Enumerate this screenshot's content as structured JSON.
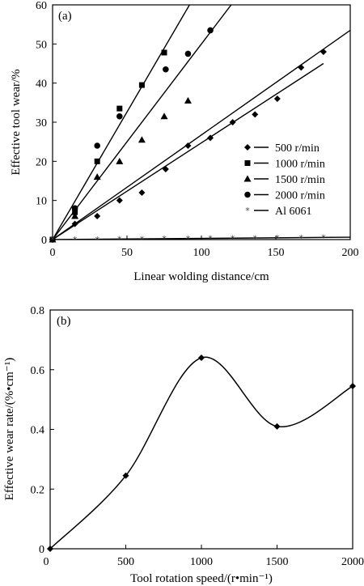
{
  "chart_data": [
    {
      "type": "scatter",
      "panel_label": "(a)",
      "xlabel": "Linear wolding distance/cm",
      "ylabel": "Effective tool wear/%",
      "xlim": [
        0,
        200
      ],
      "ylim": [
        0,
        60
      ],
      "xticks": [
        0,
        50,
        100,
        150,
        200
      ],
      "yticks": [
        0,
        10,
        20,
        30,
        40,
        50,
        60
      ],
      "legend_position": "right",
      "series": [
        {
          "name": "500 r/min",
          "marker": "diamond",
          "points": [
            [
              0,
              0
            ],
            [
              15,
              4
            ],
            [
              30,
              6
            ],
            [
              45,
              10
            ],
            [
              60,
              12
            ],
            [
              76,
              18
            ],
            [
              91,
              24
            ],
            [
              106,
              26
            ],
            [
              121,
              30
            ],
            [
              136,
              32
            ],
            [
              151,
              36
            ],
            [
              167,
              44
            ],
            [
              182,
              48
            ]
          ],
          "fit": [
            [
              0,
              0
            ],
            [
              182,
              45
            ]
          ]
        },
        {
          "name": "1000 r/min",
          "marker": "square",
          "points": [
            [
              0,
              0
            ],
            [
              15,
              7
            ],
            [
              30,
              20
            ],
            [
              45,
              33.5
            ],
            [
              60,
              39.5
            ],
            [
              75,
              47.8
            ]
          ],
          "fit": [
            [
              0,
              0
            ],
            [
              92,
              60
            ]
          ]
        },
        {
          "name": "1500 r/min",
          "marker": "triangle",
          "points": [
            [
              0,
              0
            ],
            [
              15,
              6
            ],
            [
              30,
              16
            ],
            [
              45,
              20
            ],
            [
              60,
              25.5
            ],
            [
              75,
              31.5
            ],
            [
              91,
              35.5
            ]
          ],
          "fit": [
            [
              0,
              0
            ],
            [
              120,
              60
            ]
          ]
        },
        {
          "name": "2000 r/min",
          "marker": "circle",
          "points": [
            [
              0,
              0
            ],
            [
              15,
              8
            ],
            [
              30,
              24
            ],
            [
              45,
              31.5
            ],
            [
              76,
              43.5
            ],
            [
              91,
              47.5
            ],
            [
              106,
              53.5
            ]
          ],
          "fit": [
            [
              0,
              0
            ],
            [
              200,
              53.5
            ]
          ]
        },
        {
          "name": "Al 6061",
          "marker": "star",
          "points": [
            [
              0,
              0
            ],
            [
              15,
              0
            ],
            [
              30,
              0
            ],
            [
              45,
              0.1
            ],
            [
              60,
              0.1
            ],
            [
              75,
              0.2
            ],
            [
              91,
              0.2
            ],
            [
              106,
              0.3
            ],
            [
              121,
              0.3
            ],
            [
              136,
              0.3
            ],
            [
              151,
              0.4
            ],
            [
              167,
              0.4
            ],
            [
              182,
              0.5
            ]
          ],
          "fit": [
            [
              0,
              0
            ],
            [
              200,
              0.6
            ]
          ]
        }
      ]
    },
    {
      "type": "line",
      "panel_label": "(b)",
      "xlabel": "Tool rotation speed/(r•min⁻¹)",
      "ylabel": "Effective wear rate/(%•cm⁻¹)",
      "xlim": [
        0,
        2000
      ],
      "ylim": [
        0,
        0.8
      ],
      "xticks": [
        0,
        500,
        1000,
        1500,
        2000
      ],
      "yticks": [
        0,
        0.2,
        0.4,
        0.6,
        0.8
      ],
      "ytick_labels": [
        "0",
        "0.2",
        "0.4",
        "0.6",
        "0.8"
      ],
      "x": [
        0,
        500,
        1000,
        1500,
        2000
      ],
      "values": [
        0,
        0.245,
        0.64,
        0.41,
        0.545
      ]
    }
  ]
}
